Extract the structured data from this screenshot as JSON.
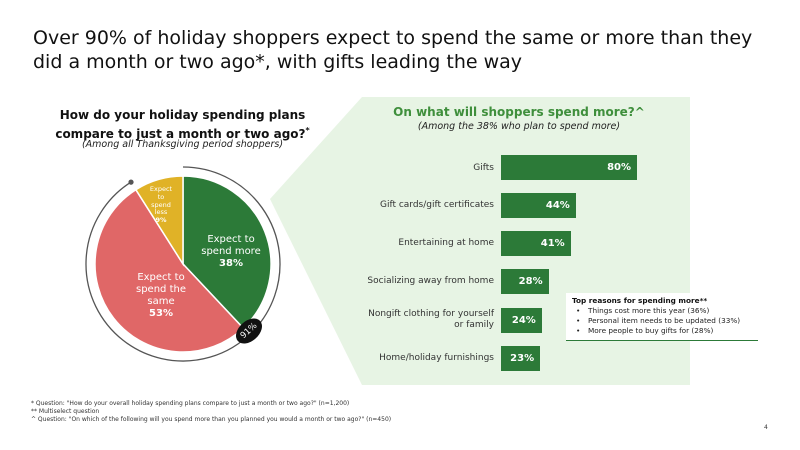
{
  "headline": "Over 90% of holiday shoppers expect to spend the same or more than they did a month or two ago*, with gifts leading the way",
  "left": {
    "title": "How do your holiday spending plans compare to just a month or two ago?",
    "title_mark": "*",
    "subtitle": "(Among all Thanksgiving period shoppers)",
    "badge": "91%"
  },
  "right": {
    "title": "On what will shoppers spend more?^",
    "subtitle": "(Among the 38% who plan to spend more)"
  },
  "reasons": {
    "title": "Top reasons for spending more**",
    "items": [
      "Things cost more this year (36%)",
      "Personal item needs to be updated (33%)",
      "More people to buy gifts for (28%)"
    ]
  },
  "footnotes": [
    "* Question: \"How do your overall holiday spending plans compare to just a month or two ago?\" (n=1,200)",
    "** Multiselect question",
    "^ Question: \"On which of the following will you spend more than you planned you would a month or two ago?\" (n=450)"
  ],
  "page_number": "4",
  "colors": {
    "more": "#2c7a38",
    "same": "#e06767",
    "less": "#e0b227",
    "panel": "#e7f4e4",
    "accent_text": "#3f8f3c"
  },
  "chart_data": [
    {
      "type": "pie",
      "slices": [
        {
          "label_lines": [
            "Expect to",
            "spend more"
          ],
          "value": 38,
          "display": "38%"
        },
        {
          "label_lines": [
            "Expect to",
            "spend the",
            "same"
          ],
          "value": 53,
          "display": "53%"
        },
        {
          "label_lines": [
            "Expect",
            "to",
            "spend",
            "less"
          ],
          "value": 9,
          "display": "9%"
        }
      ]
    },
    {
      "type": "bar",
      "orientation": "horizontal",
      "categories": [
        "Gifts",
        "Gift cards/gift certificates",
        "Entertaining at home",
        "Socializing away from home",
        "Nongift clothing for yourself or family",
        "Home/holiday furnishings"
      ],
      "values": [
        80,
        44,
        41,
        28,
        24,
        23
      ],
      "value_labels": [
        "80%",
        "44%",
        "41%",
        "28%",
        "24%",
        "23%"
      ],
      "xlim": [
        0,
        100
      ]
    }
  ]
}
